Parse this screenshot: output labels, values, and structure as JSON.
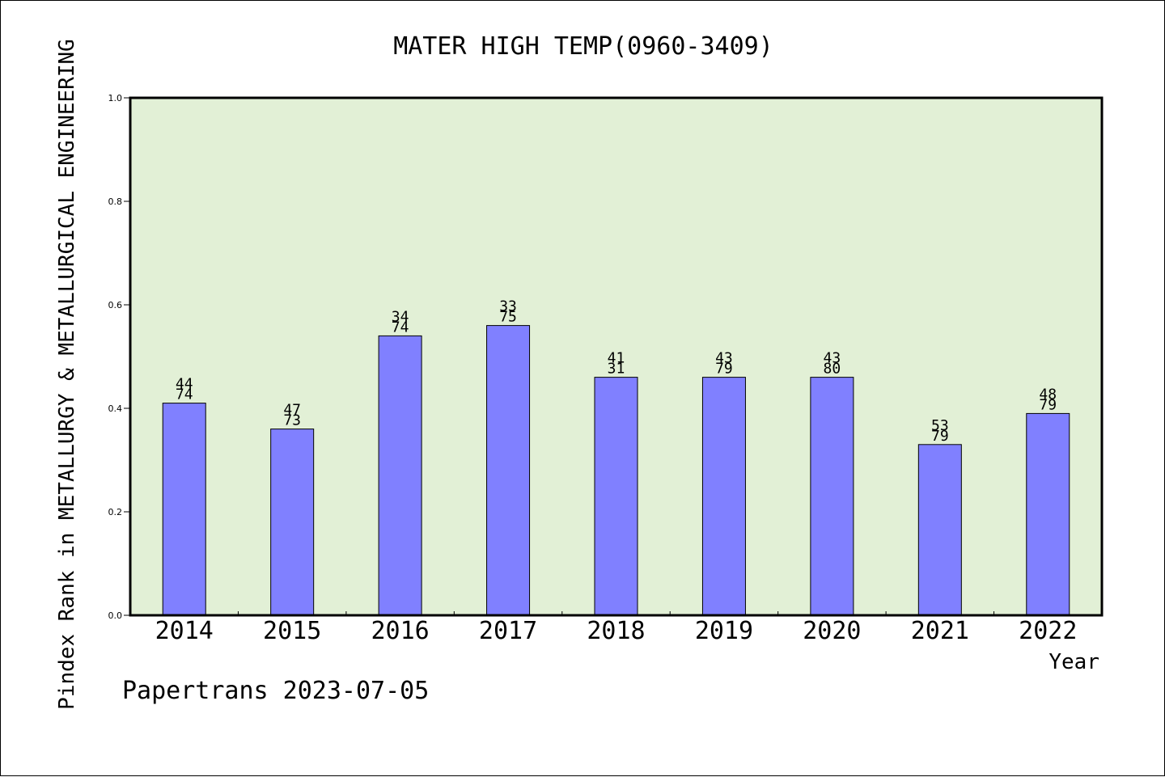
{
  "chart_data": {
    "type": "bar",
    "title": "MATER HIGH TEMP(0960-3409)",
    "xlabel": "Year",
    "ylabel": "Pindex Rank in METALLURGY & METALLURGICAL ENGINEERING",
    "categories": [
      "2014",
      "2015",
      "2016",
      "2017",
      "2018",
      "2019",
      "2020",
      "2021",
      "2022"
    ],
    "values": [
      0.41,
      0.36,
      0.54,
      0.56,
      0.46,
      0.46,
      0.46,
      0.33,
      0.39
    ],
    "labels_top": [
      "44",
      "47",
      "34",
      "33",
      "41",
      "43",
      "43",
      "53",
      "48"
    ],
    "labels_bottom": [
      "74",
      "73",
      "74",
      "75",
      "31",
      "79",
      "80",
      "79",
      "79"
    ],
    "ylim": [
      0,
      1.0
    ],
    "yticks": [
      "0.0",
      "0.2",
      "0.4",
      "0.6",
      "0.8",
      "1.0"
    ],
    "grid": false,
    "bar_color": "#8080ff",
    "plot_background": "#e2f0d6"
  },
  "footer": {
    "text": "Papertrans 2023-07-05"
  }
}
